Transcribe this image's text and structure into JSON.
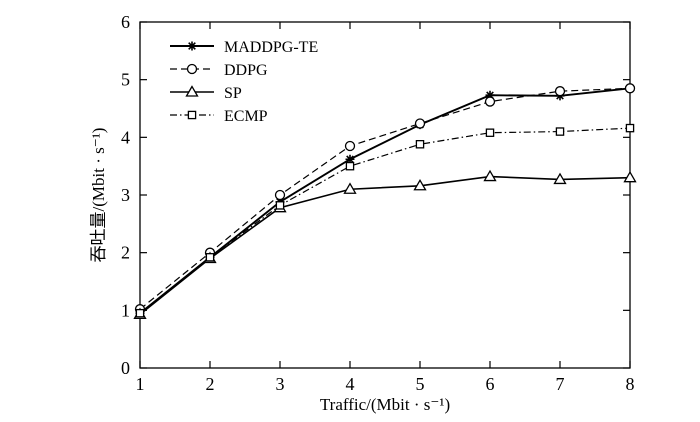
{
  "chart_data": {
    "type": "line",
    "xlabel": "Traffic/(Mbit · s⁻¹)",
    "ylabel": "吞吐量/(Mbit · s⁻¹)",
    "x": [
      1,
      2,
      3,
      4,
      5,
      6,
      7,
      8
    ],
    "xlim": [
      1,
      8
    ],
    "ylim": [
      0,
      6
    ],
    "xticks": [
      "1",
      "2",
      "3",
      "4",
      "5",
      "6",
      "7",
      "8"
    ],
    "yticks": [
      "0",
      "1",
      "2",
      "3",
      "4",
      "5",
      "6"
    ],
    "grid": false,
    "legend_position": "top-left",
    "series": [
      {
        "name": "MADDPG-TE",
        "marker": "star",
        "line": "solid",
        "values": [
          0.95,
          1.92,
          2.88,
          3.62,
          4.22,
          4.73,
          4.72,
          4.85
        ]
      },
      {
        "name": "DDPG",
        "marker": "circle",
        "line": "dashed",
        "values": [
          1.02,
          2.0,
          3.0,
          3.85,
          4.24,
          4.62,
          4.8,
          4.85
        ]
      },
      {
        "name": "SP",
        "marker": "triangle",
        "line": "solid",
        "values": [
          0.93,
          1.9,
          2.78,
          3.1,
          3.16,
          3.32,
          3.27,
          3.3
        ]
      },
      {
        "name": "ECMP",
        "marker": "square",
        "line": "dashdot",
        "values": [
          0.95,
          1.92,
          2.82,
          3.5,
          3.88,
          4.08,
          4.1,
          4.16
        ]
      }
    ]
  }
}
